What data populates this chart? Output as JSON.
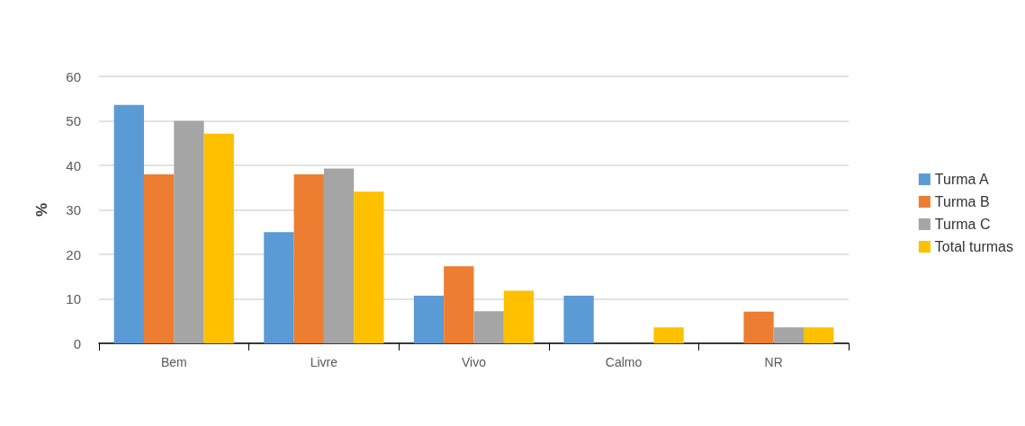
{
  "chart_data": {
    "type": "bar",
    "ylabel": "%",
    "categories": [
      "Bem",
      "Livre",
      "Vivo",
      "Calmo",
      "NR"
    ],
    "series": [
      {
        "name": "Turma A",
        "color": "#5b9bd5",
        "values": [
          53.6,
          25.0,
          10.7,
          10.7,
          0
        ]
      },
      {
        "name": "Turma B",
        "color": "#ed7d31",
        "values": [
          38.0,
          38.0,
          17.3,
          0,
          7.1
        ]
      },
      {
        "name": "Turma C",
        "color": "#a5a5a5",
        "values": [
          50.0,
          39.3,
          7.2,
          0,
          3.6
        ]
      },
      {
        "name": "Total turmas",
        "color": "#ffc000",
        "values": [
          47.1,
          34.1,
          11.8,
          3.6,
          3.6
        ]
      }
    ],
    "ylim": [
      0,
      60
    ],
    "yticks": [
      0,
      10,
      20,
      30,
      40,
      50,
      60
    ],
    "grid": "y",
    "legend": "right"
  }
}
